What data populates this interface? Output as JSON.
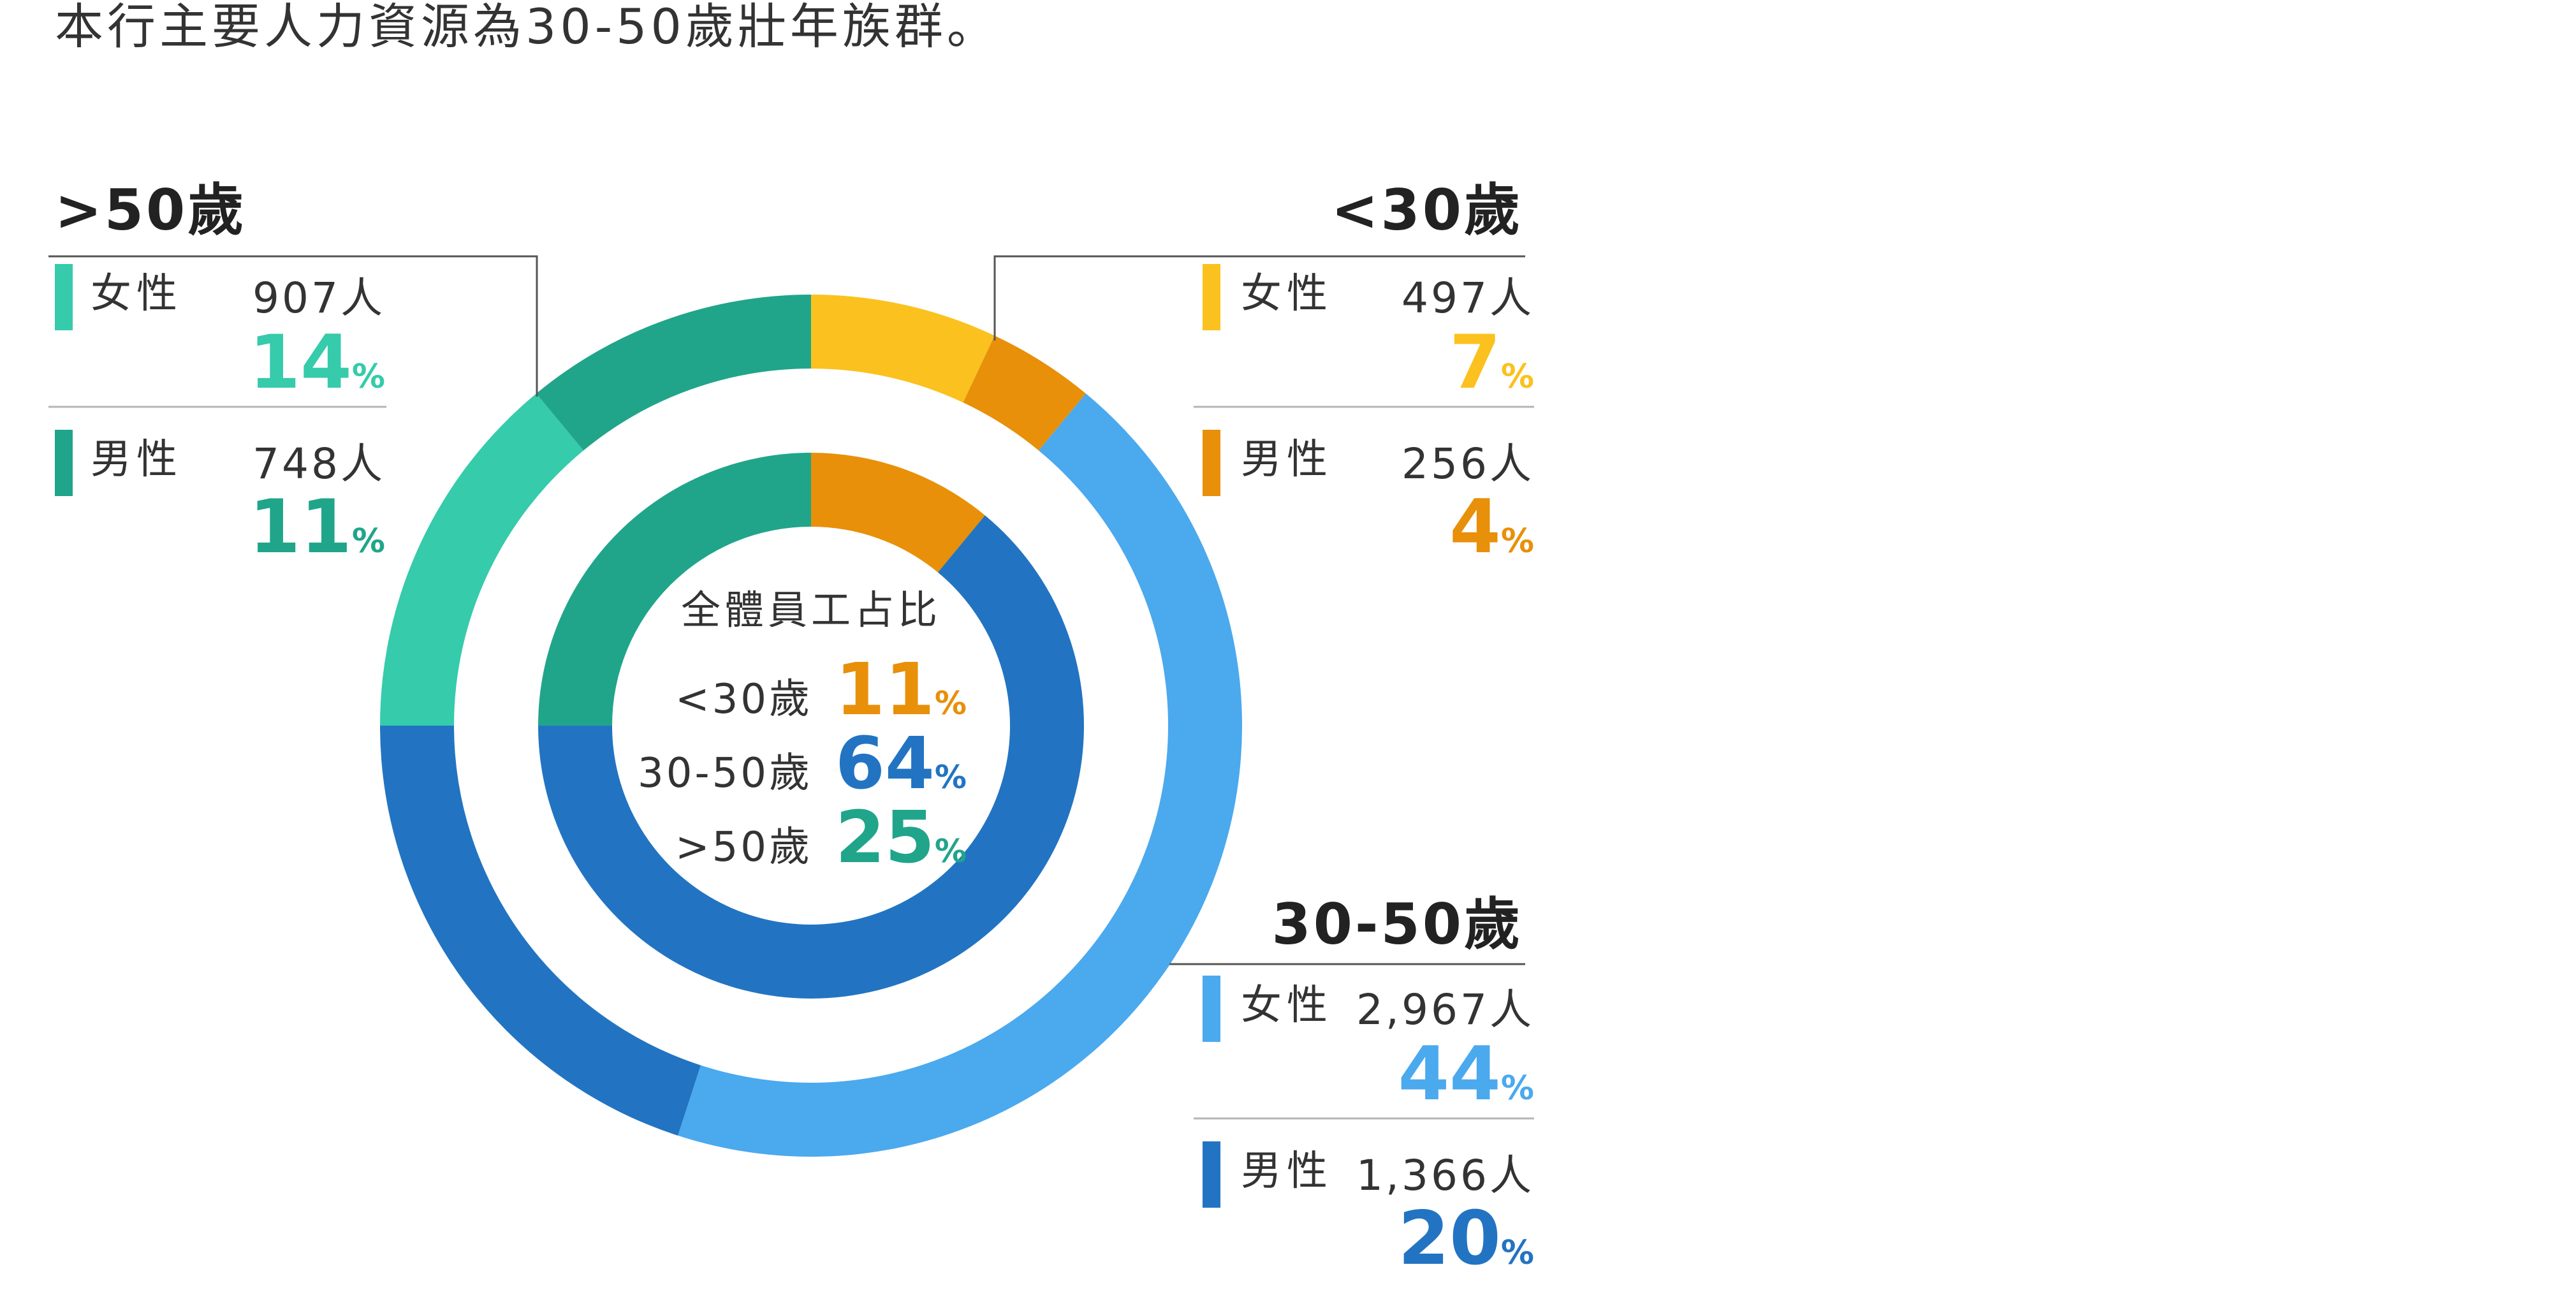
{
  "intro_text": "本行主要人力資源為30-50歲壯年族群。",
  "colors": {
    "under30_female": "#FBC11E",
    "under30_male": "#E8900A",
    "mid_female": "#4BA9EE",
    "mid_male": "#2274C2",
    "over50_female": "#35CBAB",
    "over50_male": "#20A58A",
    "text": "#333333",
    "rule": "#b5b5b5",
    "leader": "#555555"
  },
  "center": {
    "title": "全體員工占比",
    "rows": [
      {
        "label": "<30歲",
        "value": "11",
        "unit": "%",
        "color_key": "under30_male"
      },
      {
        "label": "30-50歲",
        "value": "64",
        "unit": "%",
        "color_key": "mid_male"
      },
      {
        "label": ">50歲",
        "value": "25",
        "unit": "%",
        "color_key": "over50_male"
      }
    ]
  },
  "groups": {
    "over50": {
      "title": ">50歲",
      "female": {
        "label": "女性",
        "count": "907人",
        "pct": "14",
        "unit": "%"
      },
      "male": {
        "label": "男性",
        "count": "748人",
        "pct": "11",
        "unit": "%"
      }
    },
    "under30": {
      "title": "<30歲",
      "female": {
        "label": "女性",
        "count": "497人",
        "pct": "7",
        "unit": "%"
      },
      "male": {
        "label": "男性",
        "count": "256人",
        "pct": "4",
        "unit": "%"
      }
    },
    "mid": {
      "title": "30-50歲",
      "female": {
        "label": "女性",
        "count": "2,967人",
        "pct": "44",
        "unit": "%"
      },
      "male": {
        "label": "男性",
        "count": "1,366人",
        "pct": "20",
        "unit": "%"
      }
    }
  },
  "chart_data": {
    "type": "pie",
    "title": "全體員工占比",
    "rings": [
      {
        "name": "outer",
        "slices": [
          {
            "label": "<30歲 女性",
            "value": 7,
            "count": 497,
            "color_key": "under30_female"
          },
          {
            "label": "<30歲 男性",
            "value": 4,
            "count": 256,
            "color_key": "under30_male"
          },
          {
            "label": "30-50歲 女性",
            "value": 44,
            "count": 2967,
            "color_key": "mid_female"
          },
          {
            "label": "30-50歲 男性",
            "value": 20,
            "count": 1366,
            "color_key": "mid_male"
          },
          {
            "label": ">50歲 女性",
            "value": 14,
            "count": 907,
            "color_key": "over50_female"
          },
          {
            "label": ">50歲 男性",
            "value": 11,
            "count": 748,
            "color_key": "over50_male"
          }
        ]
      },
      {
        "name": "inner",
        "slices": [
          {
            "label": "<30歲",
            "value": 11,
            "color_key": "under30_male"
          },
          {
            "label": "30-50歲",
            "value": 64,
            "color_key": "mid_male"
          },
          {
            "label": ">50歲",
            "value": 25,
            "color_key": "over50_male"
          }
        ]
      }
    ]
  }
}
